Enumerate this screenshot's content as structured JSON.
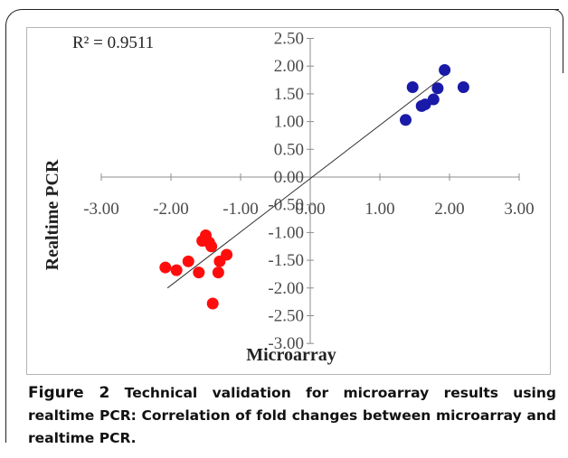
{
  "chart_data": {
    "type": "scatter",
    "xlabel": "Microarray",
    "ylabel": "Realtime PCR",
    "annotation": "R² = 0.9511",
    "xlim": [
      -3,
      3
    ],
    "ylim": [
      -3,
      2.5
    ],
    "x_ticks": [
      "-3.00",
      "-2.00",
      "-1.00",
      "0.00",
      "1.00",
      "2.00",
      "3.00"
    ],
    "y_ticks": [
      "2.50",
      "2.00",
      "1.50",
      "1.00",
      "0.50",
      "0.00",
      "-0.50",
      "-1.00",
      "-1.50",
      "-2.00",
      "-2.50",
      "-3.00"
    ],
    "grid": false,
    "trendline": {
      "x": [
        -2.05,
        1.95
      ],
      "y": [
        -2.0,
        1.85
      ]
    },
    "series": [
      {
        "color": "#1a1aa8",
        "points": [
          [
            1.37,
            1.03
          ],
          [
            1.47,
            1.62
          ],
          [
            1.6,
            1.28
          ],
          [
            1.65,
            1.31
          ],
          [
            1.77,
            1.4
          ],
          [
            1.83,
            1.6
          ],
          [
            1.93,
            1.93
          ],
          [
            2.2,
            1.62
          ]
        ]
      },
      {
        "color": "#ff0d0d",
        "points": [
          [
            -2.08,
            -1.63
          ],
          [
            -1.92,
            -1.68
          ],
          [
            -1.75,
            -1.52
          ],
          [
            -1.6,
            -1.72
          ],
          [
            -1.55,
            -1.15
          ],
          [
            -1.5,
            -1.05
          ],
          [
            -1.45,
            -1.18
          ],
          [
            -1.42,
            -1.25
          ],
          [
            -1.4,
            -2.28
          ],
          [
            -1.32,
            -1.72
          ],
          [
            -1.3,
            -1.52
          ],
          [
            -1.2,
            -1.4
          ]
        ]
      }
    ]
  },
  "caption": {
    "figure_label": "Figure 2",
    "text": " Technical validation for microarray results using realtime PCR: Correlation of fold changes between microarray and realtime PCR."
  }
}
